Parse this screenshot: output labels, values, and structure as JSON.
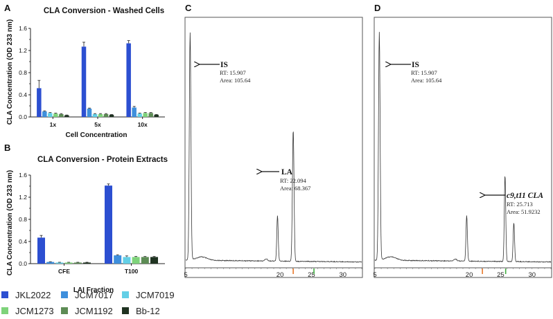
{
  "figure": {
    "legend": [
      {
        "name": "JKL2022",
        "color": "#2c4fd1"
      },
      {
        "name": "JCM7017",
        "color": "#3e8fdc"
      },
      {
        "name": "JCM7019",
        "color": "#63cfe6"
      },
      {
        "name": "JCM1273",
        "color": "#7ed37a"
      },
      {
        "name": "JCM1192",
        "color": "#5d8c55"
      },
      {
        "name": "Bb-12",
        "color": "#1f3321"
      }
    ]
  },
  "chart_data": [
    {
      "type": "bar",
      "panel": "A",
      "title": "CLA Conversion - Washed  Cells",
      "xlabel": "Cell Concentration",
      "ylabel": "CLA Concentration (OD 233 nm)",
      "ylim": [
        0,
        1.6
      ],
      "yticks": [
        "0.0",
        "0.4",
        "0.8",
        "1.2",
        "1.6"
      ],
      "categories": [
        "1x",
        "5x",
        "10x"
      ],
      "series": [
        {
          "name": "JKL2022",
          "values": [
            0.52,
            1.27,
            1.33
          ],
          "errors": [
            0.14,
            0.08,
            0.05
          ]
        },
        {
          "name": "JCM7017",
          "values": [
            0.1,
            0.15,
            0.17
          ],
          "errors": [
            0.01,
            0.01,
            0.02
          ]
        },
        {
          "name": "JCM7019",
          "values": [
            0.07,
            0.05,
            0.06
          ],
          "errors": [
            0.01,
            0.01,
            0.01
          ]
        },
        {
          "name": "JCM1273",
          "values": [
            0.06,
            0.05,
            0.07
          ],
          "errors": [
            0.01,
            0.01,
            0.01
          ]
        },
        {
          "name": "JCM1192",
          "values": [
            0.05,
            0.05,
            0.07
          ],
          "errors": [
            0.01,
            0.01,
            0.01
          ]
        },
        {
          "name": "Bb-12",
          "values": [
            0.03,
            0.04,
            0.04
          ],
          "errors": [
            0.005,
            0.005,
            0.005
          ]
        }
      ]
    },
    {
      "type": "bar",
      "panel": "B",
      "title": "CLA Conversion - Protein Extracts",
      "xlabel": "LAI  Fraction",
      "ylabel": "CLA Concentration (OD 233 nm)",
      "ylim": [
        0,
        1.6
      ],
      "yticks": [
        "0.0",
        "0.4",
        "0.8",
        "1.2",
        "1.6"
      ],
      "categories": [
        "CFE",
        "T100"
      ],
      "series": [
        {
          "name": "JKL2022",
          "values": [
            0.47,
            1.41
          ],
          "errors": [
            0.04,
            0.03
          ]
        },
        {
          "name": "JCM7017",
          "values": [
            0.03,
            0.15
          ],
          "errors": [
            0.005,
            0.01
          ]
        },
        {
          "name": "JCM7019",
          "values": [
            0.02,
            0.12
          ],
          "errors": [
            0.005,
            0.02
          ]
        },
        {
          "name": "JCM1273",
          "values": [
            0.02,
            0.12
          ],
          "errors": [
            0.005,
            0.01
          ]
        },
        {
          "name": "JCM1192",
          "values": [
            0.02,
            0.12
          ],
          "errors": [
            0.005,
            0.01
          ]
        },
        {
          "name": "Bb-12",
          "values": [
            0.02,
            0.12
          ],
          "errors": [
            0.005,
            0.01
          ]
        }
      ]
    },
    {
      "type": "line",
      "panel": "C",
      "xlim": [
        5,
        33
      ],
      "xticks": [
        "5",
        "20",
        "25",
        "30"
      ],
      "peaks": [
        {
          "rt": 5.7,
          "height": 1.0
        },
        {
          "rt": 19.6,
          "height": 0.2
        },
        {
          "rt": 22.1,
          "height": 0.58
        }
      ],
      "markers": [
        {
          "rt": 22.1,
          "color": "#e8782a"
        },
        {
          "rt": 25.4,
          "color": "#3fae3f"
        }
      ],
      "annotations": [
        {
          "name": "IS",
          "rt_text": "RT: 15.907",
          "area_text": "Area: 105.64"
        },
        {
          "name": "LA",
          "rt_text": "RT: 22.094",
          "area_text": "Area: 68.367"
        }
      ]
    },
    {
      "type": "line",
      "panel": "D",
      "xlim": [
        5,
        33
      ],
      "xticks": [
        "5",
        "20",
        "25",
        "30"
      ],
      "peaks": [
        {
          "rt": 5.7,
          "height": 1.0
        },
        {
          "rt": 19.6,
          "height": 0.2
        },
        {
          "rt": 25.7,
          "height": 0.38
        },
        {
          "rt": 27.1,
          "height": 0.17
        }
      ],
      "markers": [
        {
          "rt": 22.1,
          "color": "#e8782a"
        },
        {
          "rt": 25.8,
          "color": "#3fae3f"
        }
      ],
      "annotations": [
        {
          "name": "IS",
          "rt_text": "RT: 15.907",
          "area_text": "Area: 105.64"
        },
        {
          "name": "c9,t11 CLA",
          "rt_text": "RT: 25.713",
          "area_text": "Area: 51.9232"
        }
      ]
    }
  ]
}
